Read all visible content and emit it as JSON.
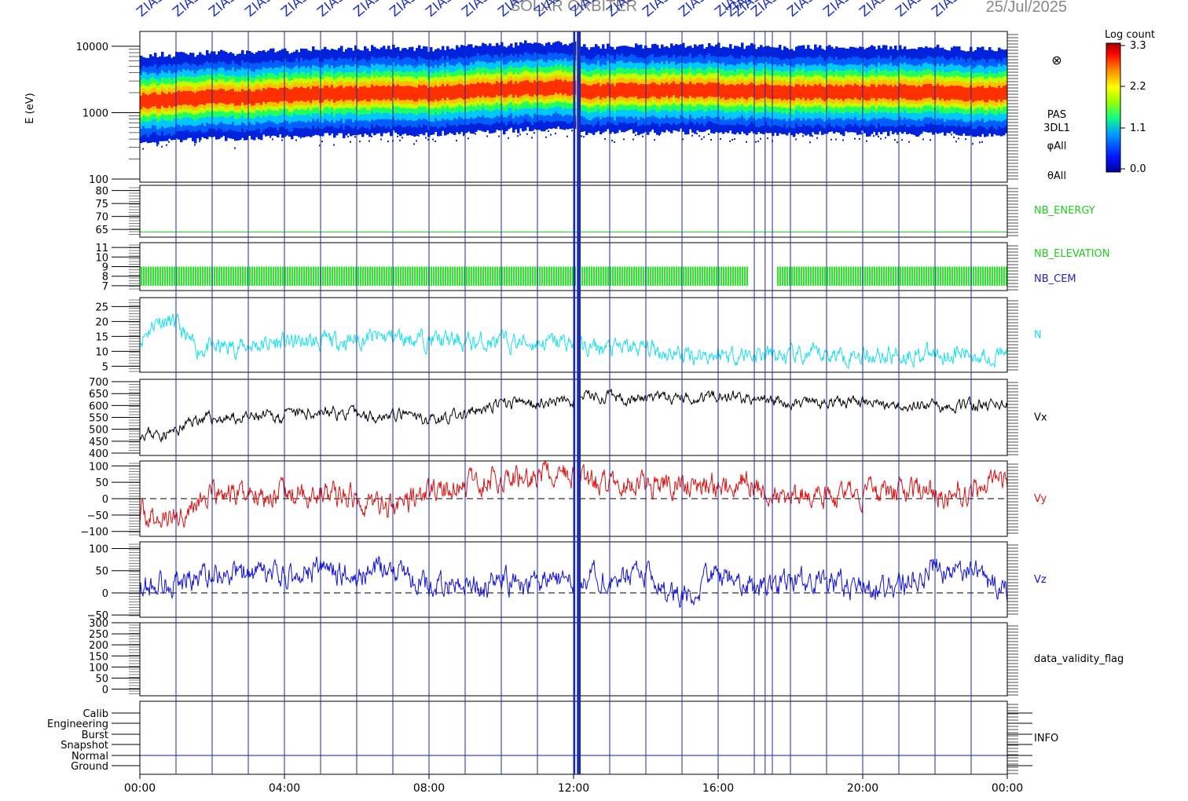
{
  "header": {
    "title": "SOLAR ORBITER",
    "date": "25/Jul/2025",
    "marker_label": "ZIAS"
  },
  "colorbar": {
    "title": "Log count",
    "ticks": [
      "3.3",
      "2.2",
      "1.1",
      "0.0"
    ],
    "range": [
      0.0,
      3.3
    ]
  },
  "panels": {
    "spectrogram": {
      "ylabel": "E (eV)",
      "ytick_labels": [
        "10000",
        "1000",
        "100"
      ],
      "right_labels": [
        "PAS",
        "3DL1",
        "φAll",
        "θAll"
      ],
      "symbol": "⊗"
    },
    "nb_energy": {
      "ytick_labels": [
        "80",
        "75",
        "70",
        "65"
      ],
      "label": "NB_ENERGY",
      "color": "#22cc22"
    },
    "nb_elevation": {
      "ytick_labels": [
        "11",
        "10",
        "9",
        "8",
        "7"
      ],
      "labels": [
        {
          "text": "NB_ELEVATION",
          "color": "#22cc22"
        },
        {
          "text": "NB_CEM",
          "color": "#2222cc"
        }
      ]
    },
    "n": {
      "ytick_labels": [
        "25",
        "20",
        "15",
        "10",
        "5"
      ],
      "label": "N",
      "color": "#18e0f0"
    },
    "vx": {
      "ytick_labels": [
        "700",
        "650",
        "600",
        "550",
        "500",
        "450",
        "400"
      ],
      "label": "Vx",
      "color": "#000000"
    },
    "vy": {
      "ytick_labels": [
        "100",
        "50",
        "0",
        "−50",
        "−100"
      ],
      "label": "Vy",
      "color": "#dd1111"
    },
    "vz": {
      "ytick_labels": [
        "100",
        "50",
        "0",
        "−50"
      ],
      "label": "Vz",
      "color": "#1111dd"
    },
    "validity": {
      "ytick_labels": [
        "300",
        "250",
        "200",
        "150",
        "100",
        "50",
        "0"
      ],
      "label": "data_validity_flag"
    },
    "info": {
      "ytick_labels": [
        "Calib",
        "Engineering",
        "Burst",
        "Snapshot",
        "Normal",
        "Ground"
      ],
      "label": "INFO"
    }
  },
  "xaxis": {
    "tick_labels": [
      "00:00",
      "04:00",
      "08:00",
      "12:00",
      "16:00",
      "20:00",
      "00:00"
    ]
  },
  "chart_data": {
    "type": "line",
    "x_unit": "hours UT, 25 Jul 2025",
    "xlim": [
      0,
      24
    ],
    "x": [
      0,
      0.5,
      1,
      1.5,
      2,
      3,
      4,
      5,
      6,
      7,
      8,
      9,
      10,
      11,
      11.9,
      12.3,
      13,
      14,
      15,
      16,
      17,
      18,
      19,
      20,
      21,
      22,
      23,
      24
    ],
    "series": [
      {
        "name": "N",
        "ylim": [
          3,
          28
        ],
        "values": [
          14,
          21,
          19,
          11,
          11,
          12,
          13,
          13,
          14,
          15,
          14,
          13,
          13,
          13,
          13,
          11,
          11,
          11,
          9,
          9,
          9,
          8,
          9,
          9,
          9,
          9,
          9,
          9
        ]
      },
      {
        "name": "Vx",
        "ylim": [
          390,
          710
        ],
        "values": [
          490,
          480,
          490,
          540,
          545,
          545,
          555,
          575,
          560,
          560,
          545,
          560,
          605,
          615,
          620,
          640,
          635,
          625,
          630,
          645,
          625,
          610,
          610,
          615,
          605,
          605,
          600,
          605
        ]
      },
      {
        "name": "Vy",
        "ylim": [
          -115,
          115
        ],
        "values": [
          -45,
          -65,
          -55,
          -15,
          5,
          20,
          10,
          20,
          0,
          -25,
          20,
          40,
          70,
          65,
          75,
          55,
          40,
          40,
          40,
          50,
          45,
          5,
          5,
          10,
          20,
          20,
          30,
          40
        ]
      },
      {
        "name": "Vz",
        "ylim": [
          -55,
          115
        ],
        "values": [
          15,
          20,
          25,
          30,
          45,
          40,
          35,
          55,
          40,
          60,
          15,
          10,
          25,
          20,
          30,
          35,
          40,
          40,
          -5,
          40,
          10,
          30,
          25,
          10,
          15,
          60,
          45,
          -5
        ]
      }
    ],
    "spectrogram": {
      "type": "heatmap",
      "y_unit": "E (eV)",
      "ylim": [
        100,
        15000
      ],
      "y_scale": "log",
      "peak_energy_eV": [
        1500,
        1500,
        1600,
        1600,
        1700,
        1700,
        1800,
        1900,
        1900,
        2000,
        1900,
        2100,
        2200,
        2300,
        2400,
        2100,
        2100,
        2100,
        2200,
        2100,
        2100,
        2000,
        2000,
        2000,
        2000,
        2000,
        1900,
        1900
      ]
    },
    "nb_energy_value": 64,
    "nb_elevation_range": [
      7,
      9
    ],
    "nb_elevation_gaps_hours": [
      [
        16.8,
        17.6
      ]
    ],
    "info_state": "Normal",
    "vertical_markers_hours": [
      1,
      2,
      3,
      4,
      5,
      6,
      7,
      8,
      9,
      10,
      11,
      12,
      13,
      14,
      15,
      16,
      17,
      17.3,
      17.5,
      18,
      19,
      20,
      21,
      22,
      23
    ],
    "grid": false
  }
}
